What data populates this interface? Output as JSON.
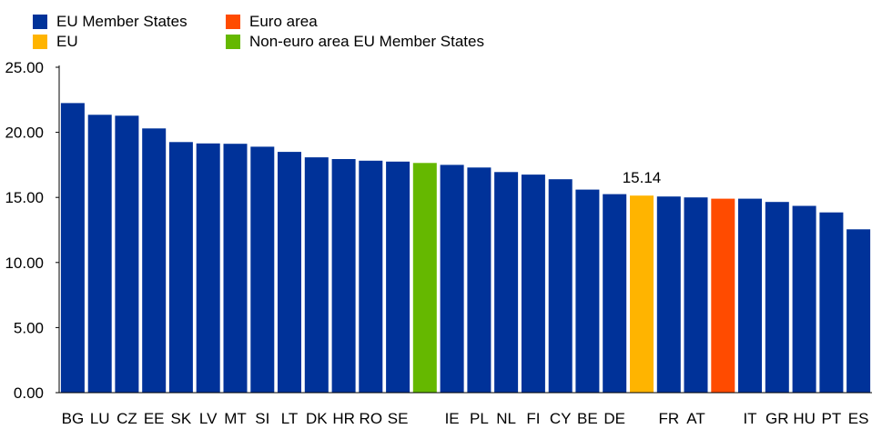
{
  "colors": {
    "member": "#003299",
    "eu": "#FFB400",
    "euro_area": "#FF4B00",
    "non_euro": "#65B800"
  },
  "legend": [
    {
      "label": "EU Member States",
      "color": "#003299"
    },
    {
      "label": "EU",
      "color": "#FFB400"
    },
    {
      "label": "Euro area",
      "color": "#FF4B00"
    },
    {
      "label": "Non-euro area EU Member States",
      "color": "#65B800"
    }
  ],
  "chart_data": {
    "type": "bar",
    "categories": [
      "BG",
      "LU",
      "CZ",
      "EE",
      "SK",
      "LV",
      "MT",
      "SI",
      "LT",
      "DK",
      "HR",
      "RO",
      "SE",
      "",
      "IE",
      "PL",
      "NL",
      "FI",
      "CY",
      "BE",
      "DE",
      "",
      "FR",
      "AT",
      "",
      "IT",
      "GR",
      "HU",
      "PT",
      "ES"
    ],
    "values": [
      22.25,
      21.35,
      21.28,
      20.3,
      19.25,
      19.15,
      19.12,
      18.9,
      18.5,
      18.08,
      17.95,
      17.82,
      17.75,
      17.65,
      17.5,
      17.3,
      16.95,
      16.75,
      16.4,
      15.6,
      15.25,
      15.14,
      15.07,
      15.0,
      14.9,
      14.9,
      14.65,
      14.35,
      13.85,
      12.55
    ],
    "groups": [
      "member",
      "member",
      "member",
      "member",
      "member",
      "member",
      "member",
      "member",
      "member",
      "member",
      "member",
      "member",
      "member",
      "non_euro",
      "member",
      "member",
      "member",
      "member",
      "member",
      "member",
      "member",
      "eu",
      "member",
      "member",
      "euro_area",
      "member",
      "member",
      "member",
      "member",
      "member"
    ],
    "data_labels": [
      {
        "index": 21,
        "text": "15.14"
      }
    ],
    "ylim": [
      0,
      25
    ],
    "yticks": [
      "0.00",
      "5.00",
      "10.00",
      "15.00",
      "20.00",
      "25.00"
    ],
    "grid": false,
    "legend_position": "top-left"
  }
}
